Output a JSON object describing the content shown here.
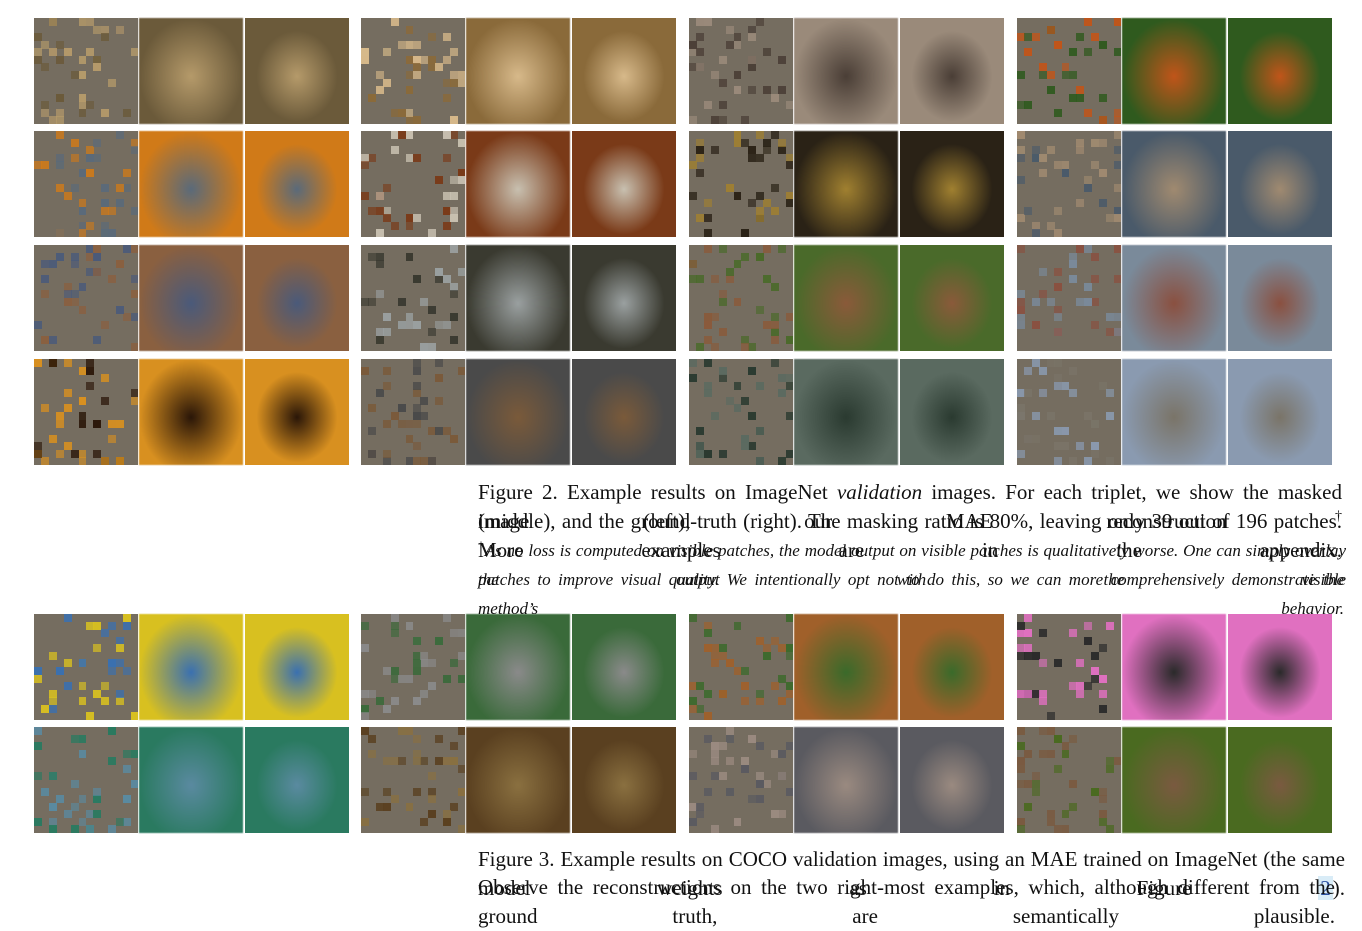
{
  "figure_2": {
    "caption": {
      "label": "Figure 2.",
      "text_1": "Example results on ImageNet",
      "emphasis": "validation",
      "text_2": "images. For each triplet, we show the masked image (left), our MAE reconstruction",
      "dagger": "†",
      "text_3": "(middle), and the ground-truth (right). The masking ratio is 80%, leaving only 39 out of 196 patches. More examples are in the appendix."
    },
    "footnote": {
      "mark": "†",
      "line_1": "As no loss is computed on visible patches, the model output on visible patches is qualitatively worse. One can simply overlay the output with the visible",
      "line_2": "patches to improve visual quality. We intentionally opt not to do this, so we can more comprehensively demonstrate the method’s behavior."
    }
  },
  "figure_3": {
    "caption": {
      "label": "Figure 3.",
      "text_1": "Example results on COCO validation images, using an MAE trained on ImageNet (the same model weights as in Figure",
      "ref": "2",
      "text_2": ").",
      "line_2": "Observe the reconstructions on the two right-most examples, which, although different from the ground truth, are semantically plausible."
    }
  }
}
